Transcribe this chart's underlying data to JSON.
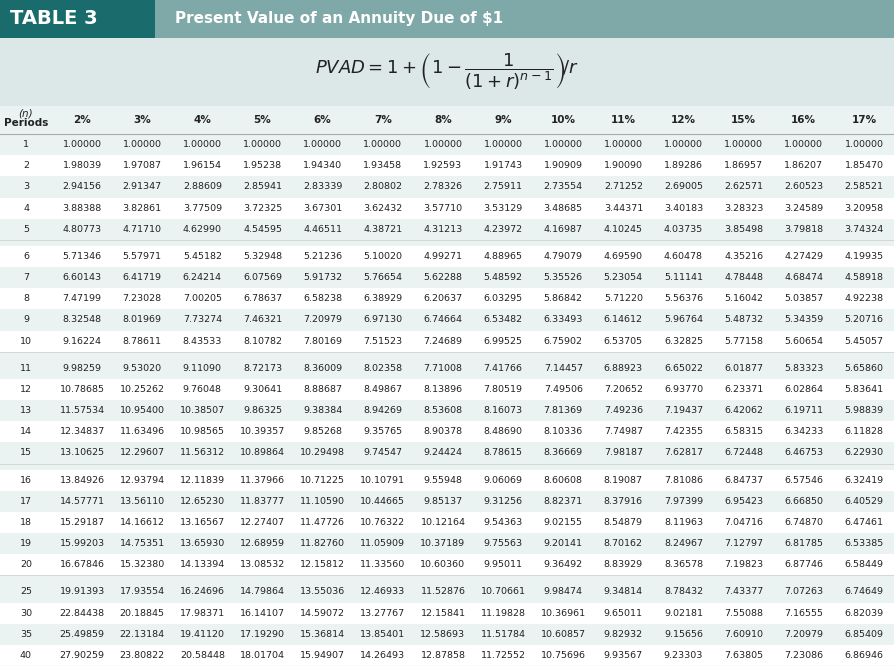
{
  "title_left": "TABLE 3",
  "title_right": "Present Value of an Annuity Due of $1",
  "header_bg_left": "#1a6b6b",
  "header_bg_right": "#7fa8a8",
  "formula_bg": "#dce8e8",
  "table_bg_light": "#eaf2f2",
  "table_bg_white": "#ffffff",
  "col_headers": [
    "(n)\nPeriods",
    "2%",
    "3%",
    "4%",
    "5%",
    "6%",
    "7%",
    "8%",
    "9%",
    "10%",
    "11%",
    "12%",
    "15%",
    "16%",
    "17%"
  ],
  "rows": [
    [
      1,
      "1.00000",
      "1.00000",
      "1.00000",
      "1.00000",
      "1.00000",
      "1.00000",
      "1.00000",
      "1.00000",
      "1.00000",
      "1.00000",
      "1.00000",
      "1.00000",
      "1.00000",
      "1.00000"
    ],
    [
      2,
      "1.98039",
      "1.97087",
      "1.96154",
      "1.95238",
      "1.94340",
      "1.93458",
      "1.92593",
      "1.91743",
      "1.90909",
      "1.90090",
      "1.89286",
      "1.86957",
      "1.86207",
      "1.85470"
    ],
    [
      3,
      "2.94156",
      "2.91347",
      "2.88609",
      "2.85941",
      "2.83339",
      "2.80802",
      "2.78326",
      "2.75911",
      "2.73554",
      "2.71252",
      "2.69005",
      "2.62571",
      "2.60523",
      "2.58521"
    ],
    [
      4,
      "3.88388",
      "3.82861",
      "3.77509",
      "3.72325",
      "3.67301",
      "3.62432",
      "3.57710",
      "3.53129",
      "3.48685",
      "3.44371",
      "3.40183",
      "3.28323",
      "3.24589",
      "3.20958"
    ],
    [
      5,
      "4.80773",
      "4.71710",
      "4.62990",
      "4.54595",
      "4.46511",
      "4.38721",
      "4.31213",
      "4.23972",
      "4.16987",
      "4.10245",
      "4.03735",
      "3.85498",
      "3.79818",
      "3.74324"
    ],
    [
      6,
      "5.71346",
      "5.57971",
      "5.45182",
      "5.32948",
      "5.21236",
      "5.10020",
      "4.99271",
      "4.88965",
      "4.79079",
      "4.69590",
      "4.60478",
      "4.35216",
      "4.27429",
      "4.19935"
    ],
    [
      7,
      "6.60143",
      "6.41719",
      "6.24214",
      "6.07569",
      "5.91732",
      "5.76654",
      "5.62288",
      "5.48592",
      "5.35526",
      "5.23054",
      "5.11141",
      "4.78448",
      "4.68474",
      "4.58918"
    ],
    [
      8,
      "7.47199",
      "7.23028",
      "7.00205",
      "6.78637",
      "6.58238",
      "6.38929",
      "6.20637",
      "6.03295",
      "5.86842",
      "5.71220",
      "5.56376",
      "5.16042",
      "5.03857",
      "4.92238"
    ],
    [
      9,
      "8.32548",
      "8.01969",
      "7.73274",
      "7.46321",
      "7.20979",
      "6.97130",
      "6.74664",
      "6.53482",
      "6.33493",
      "6.14612",
      "5.96764",
      "5.48732",
      "5.34359",
      "5.20716"
    ],
    [
      10,
      "9.16224",
      "8.78611",
      "8.43533",
      "8.10782",
      "7.80169",
      "7.51523",
      "7.24689",
      "6.99525",
      "6.75902",
      "6.53705",
      "6.32825",
      "5.77158",
      "5.60654",
      "5.45057"
    ],
    [
      11,
      "9.98259",
      "9.53020",
      "9.11090",
      "8.72173",
      "8.36009",
      "8.02358",
      "7.71008",
      "7.41766",
      "7.14457",
      "6.88923",
      "6.65022",
      "6.01877",
      "5.83323",
      "5.65860"
    ],
    [
      12,
      "10.78685",
      "10.25262",
      "9.76048",
      "9.30641",
      "8.88687",
      "8.49867",
      "8.13896",
      "7.80519",
      "7.49506",
      "7.20652",
      "6.93770",
      "6.23371",
      "6.02864",
      "5.83641"
    ],
    [
      13,
      "11.57534",
      "10.95400",
      "10.38507",
      "9.86325",
      "9.38384",
      "8.94269",
      "8.53608",
      "8.16073",
      "7.81369",
      "7.49236",
      "7.19437",
      "6.42062",
      "6.19711",
      "5.98839"
    ],
    [
      14,
      "12.34837",
      "11.63496",
      "10.98565",
      "10.39357",
      "9.85268",
      "9.35765",
      "8.90378",
      "8.48690",
      "8.10336",
      "7.74987",
      "7.42355",
      "6.58315",
      "6.34233",
      "6.11828"
    ],
    [
      15,
      "13.10625",
      "12.29607",
      "11.56312",
      "10.89864",
      "10.29498",
      "9.74547",
      "9.24424",
      "8.78615",
      "8.36669",
      "7.98187",
      "7.62817",
      "6.72448",
      "6.46753",
      "6.22930"
    ],
    [
      16,
      "13.84926",
      "12.93794",
      "12.11839",
      "11.37966",
      "10.71225",
      "10.10791",
      "9.55948",
      "9.06069",
      "8.60608",
      "8.19087",
      "7.81086",
      "6.84737",
      "6.57546",
      "6.32419"
    ],
    [
      17,
      "14.57771",
      "13.56110",
      "12.65230",
      "11.83777",
      "11.10590",
      "10.44665",
      "9.85137",
      "9.31256",
      "8.82371",
      "8.37916",
      "7.97399",
      "6.95423",
      "6.66850",
      "6.40529"
    ],
    [
      18,
      "15.29187",
      "14.16612",
      "13.16567",
      "12.27407",
      "11.47726",
      "10.76322",
      "10.12164",
      "9.54363",
      "9.02155",
      "8.54879",
      "8.11963",
      "7.04716",
      "6.74870",
      "6.47461"
    ],
    [
      19,
      "15.99203",
      "14.75351",
      "13.65930",
      "12.68959",
      "11.82760",
      "11.05909",
      "10.37189",
      "9.75563",
      "9.20141",
      "8.70162",
      "8.24967",
      "7.12797",
      "6.81785",
      "6.53385"
    ],
    [
      20,
      "16.67846",
      "15.32380",
      "14.13394",
      "13.08532",
      "12.15812",
      "11.33560",
      "10.60360",
      "9.95011",
      "9.36492",
      "8.83929",
      "8.36578",
      "7.19823",
      "6.87746",
      "6.58449"
    ],
    [
      25,
      "19.91393",
      "17.93554",
      "16.24696",
      "14.79864",
      "13.55036",
      "12.46933",
      "11.52876",
      "10.70661",
      "9.98474",
      "9.34814",
      "8.78432",
      "7.43377",
      "7.07263",
      "6.74649"
    ],
    [
      30,
      "22.84438",
      "20.18845",
      "17.98371",
      "16.14107",
      "14.59072",
      "13.27767",
      "12.15841",
      "11.19828",
      "10.36961",
      "9.65011",
      "9.02181",
      "7.55088",
      "7.16555",
      "6.82039"
    ],
    [
      35,
      "25.49859",
      "22.13184",
      "19.41120",
      "17.19290",
      "15.36814",
      "13.85401",
      "12.58693",
      "11.51784",
      "10.60857",
      "9.82932",
      "9.15656",
      "7.60910",
      "7.20979",
      "6.85409"
    ],
    [
      40,
      "27.90259",
      "23.80822",
      "20.58448",
      "18.01704",
      "15.94907",
      "14.26493",
      "12.87858",
      "11.72552",
      "10.75696",
      "9.93567",
      "9.23303",
      "7.63805",
      "7.23086",
      "6.86946"
    ]
  ],
  "group_breaks": [
    5,
    10,
    15,
    20
  ],
  "last_group_rows": [
    25,
    30,
    35,
    40
  ]
}
